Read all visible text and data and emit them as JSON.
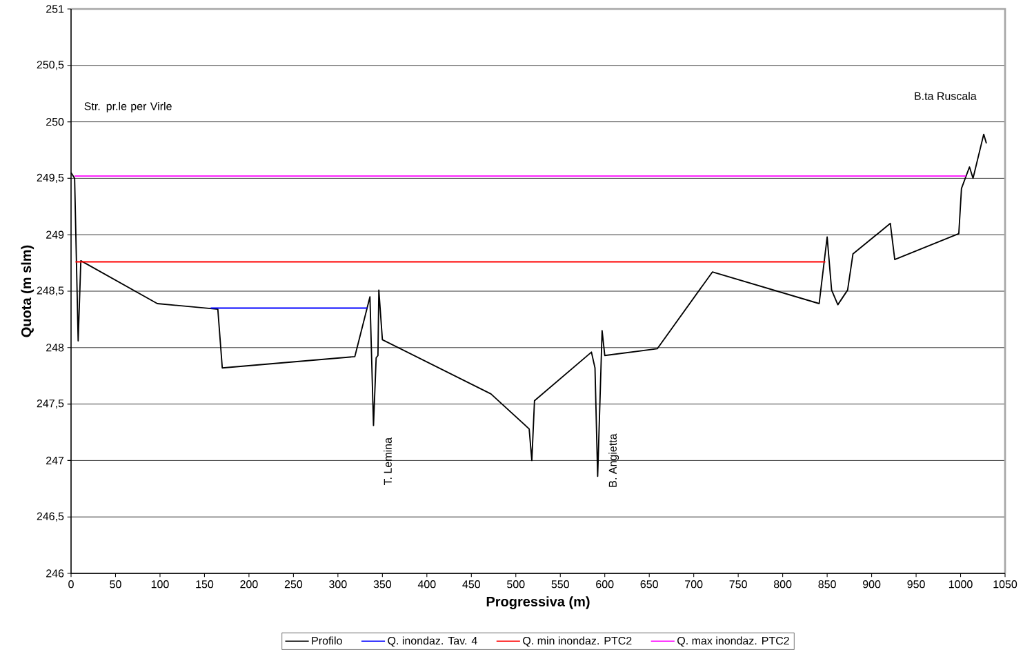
{
  "chart_data": {
    "type": "line",
    "xlabel": "Progressiva (m)",
    "ylabel": "Quota (m slm)",
    "xlim": [
      0,
      1050
    ],
    "ylim": [
      246,
      251
    ],
    "xticks": [
      0,
      50,
      100,
      150,
      200,
      250,
      300,
      350,
      400,
      450,
      500,
      550,
      600,
      650,
      700,
      750,
      800,
      850,
      900,
      950,
      1000,
      1050
    ],
    "yticks": [
      246,
      {
        "value": 246.5,
        "label": "246,5"
      },
      247,
      {
        "value": 247.5,
        "label": "247,5"
      },
      248,
      {
        "value": 248.5,
        "label": "248,5"
      },
      249,
      {
        "value": 249.5,
        "label": "249,5"
      },
      250,
      {
        "value": 250.5,
        "label": "250,5"
      },
      251
    ],
    "grid": "y",
    "legend": "bottom",
    "marker": "none",
    "line_style": "solid",
    "series": [
      {
        "name": "Profilo",
        "color": "#000000",
        "x": [
          0,
          4,
          8,
          11,
          97,
          165,
          170,
          319,
          336,
          340,
          343,
          345,
          346,
          350,
          472,
          515,
          518,
          521,
          585,
          589,
          592,
          597,
          600,
          659,
          721,
          841,
          850,
          855,
          862,
          873,
          879,
          921,
          926,
          998,
          1001,
          1010,
          1014,
          1026,
          1029
        ],
        "values": [
          249.55,
          249.5,
          248.06,
          248.77,
          248.39,
          248.34,
          247.82,
          247.92,
          248.45,
          247.31,
          247.91,
          247.93,
          248.51,
          248.07,
          247.59,
          247.28,
          247.0,
          247.53,
          247.96,
          247.82,
          246.86,
          248.15,
          247.93,
          247.99,
          248.67,
          248.39,
          248.98,
          248.51,
          248.38,
          248.51,
          248.83,
          249.1,
          248.78,
          249.01,
          249.41,
          249.6,
          249.5,
          249.89,
          249.81
        ]
      },
      {
        "name": "Q. inondaz. Tav. 4",
        "color": "#0000ff",
        "x": [
          157,
          333
        ],
        "values": [
          248.35,
          248.35
        ]
      },
      {
        "name": "Q. min inondaz. PTC2",
        "color": "#ff0000",
        "x": [
          5,
          848
        ],
        "values": [
          248.76,
          248.76
        ]
      },
      {
        "name": "Q. max inondaz. PTC2",
        "color": "#ff00ff",
        "x": [
          4,
          1006
        ],
        "values": [
          249.52,
          249.52
        ]
      }
    ],
    "annotations": [
      "Str. pr.le per Virle",
      "T. Lemina",
      "B. Angietta",
      "B.ta Ruscala"
    ]
  }
}
